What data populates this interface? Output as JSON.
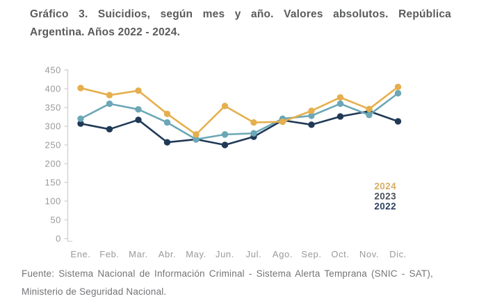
{
  "title": {
    "line1": "Gráfico 3. Suicidios, según mes y año. Valores absolutos. República",
    "line2": "Argentina. Años 2022 - 2024."
  },
  "footer": {
    "line1": "Fuente: Sistema Nacional de Información Criminal - Sistema Alerta Temprana (SNIC - SAT),",
    "line2": "Ministerio de Seguridad Nacional."
  },
  "colors": {
    "title_text": "#595A5C",
    "axis_text": "#98999C",
    "axis_line": "#CCCDCF",
    "footer_text": "#737477",
    "series_2024": "#E5AF4E",
    "series_2023": "#6BA7B6",
    "series_2022": "#203956"
  },
  "legend": {
    "position": "right-inside",
    "items": [
      {
        "label": "2024",
        "color": "#D8AC62"
      },
      {
        "label": "2023",
        "color": "#4A5159"
      },
      {
        "label": "2022",
        "color": "#2B3F5E"
      }
    ]
  },
  "chart_data": {
    "type": "line",
    "title": "Gráfico 3. Suicidios, según mes y año. Valores absolutos. República Argentina. Años 2022 - 2024.",
    "source": "Fuente: Sistema Nacional de Información Criminal - Sistema Alerta Temprana (SNIC - SAT), Ministerio de Seguridad Nacional.",
    "categories": [
      "Ene.",
      "Feb.",
      "Mar.",
      "Abr.",
      "May.",
      "Jun.",
      "Jul.",
      "Ago.",
      "Sep.",
      "Oct.",
      "Nov.",
      "Dic."
    ],
    "xlabel": "",
    "ylabel": "",
    "ylim": [
      0,
      450
    ],
    "y_ticks": [
      450,
      400,
      350,
      300,
      250,
      200,
      150,
      100,
      50,
      0
    ],
    "grid": false,
    "legend_position": "right-inside",
    "series": [
      {
        "name": "2024",
        "color": "#E5AF4E",
        "values": [
          402,
          383,
          395,
          333,
          278,
          354,
          310,
          312,
          341,
          377,
          346,
          405
        ]
      },
      {
        "name": "2023",
        "color": "#6BA7B6",
        "values": [
          320,
          360,
          345,
          310,
          265,
          278,
          281,
          320,
          328,
          360,
          330,
          388
        ]
      },
      {
        "name": "2022",
        "color": "#203956",
        "values": [
          307,
          292,
          317,
          257,
          265,
          250,
          272,
          316,
          304,
          326,
          340,
          313
        ]
      }
    ]
  }
}
